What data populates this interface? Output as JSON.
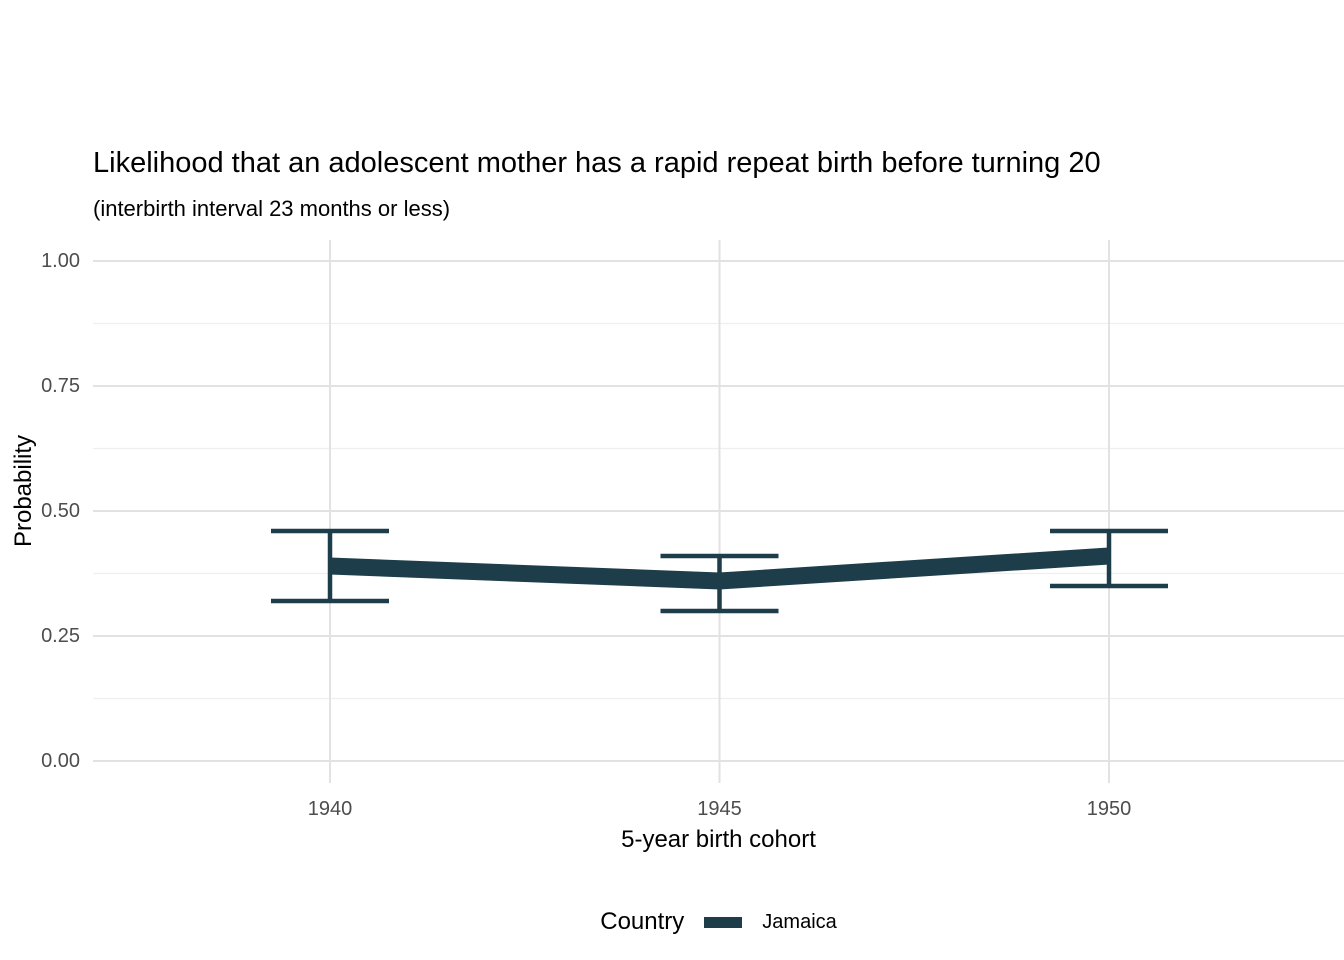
{
  "title": "Likelihood that an adolescent mother has a rapid repeat birth before turning 20",
  "subtitle": "(interbirth interval 23 months or less)",
  "chart_data": {
    "type": "line",
    "x": [
      1940,
      1945,
      1950
    ],
    "xtick_labels": [
      "1940",
      "1945",
      "1950"
    ],
    "series": [
      {
        "name": "Jamaica",
        "values": [
          0.39,
          0.36,
          0.41
        ],
        "ci_upper": [
          0.46,
          0.41,
          0.46
        ],
        "ci_lower": [
          0.32,
          0.3,
          0.35
        ],
        "color": "#1d3d4a"
      }
    ],
    "title": "Likelihood that an adolescent mother has a rapid repeat birth before turning 20",
    "subtitle": "(interbirth interval 23 months or less)",
    "xlabel": "5-year birth cohort",
    "ylabel": "Probability",
    "ylim": [
      0,
      1
    ],
    "yticks": [
      0.0,
      0.25,
      0.5,
      0.75,
      1.0
    ],
    "ytick_labels": [
      "0.00",
      "0.25",
      "0.50",
      "0.75",
      "1.00"
    ],
    "grid": {
      "major_color": "#e2e2e2",
      "minor_color": "#efefef",
      "minor_y": [
        0.125,
        0.375,
        0.625,
        0.875
      ],
      "vertical_minor": false
    },
    "legend": {
      "title": "Country",
      "position": "bottom",
      "entries": [
        {
          "label": "Jamaica",
          "color": "#1d3d4a"
        }
      ]
    }
  },
  "colors": {
    "background": "#ffffff",
    "tick_text": "#4d4d4d",
    "text": "#000000",
    "series_jamaica": "#1d3d4a"
  }
}
